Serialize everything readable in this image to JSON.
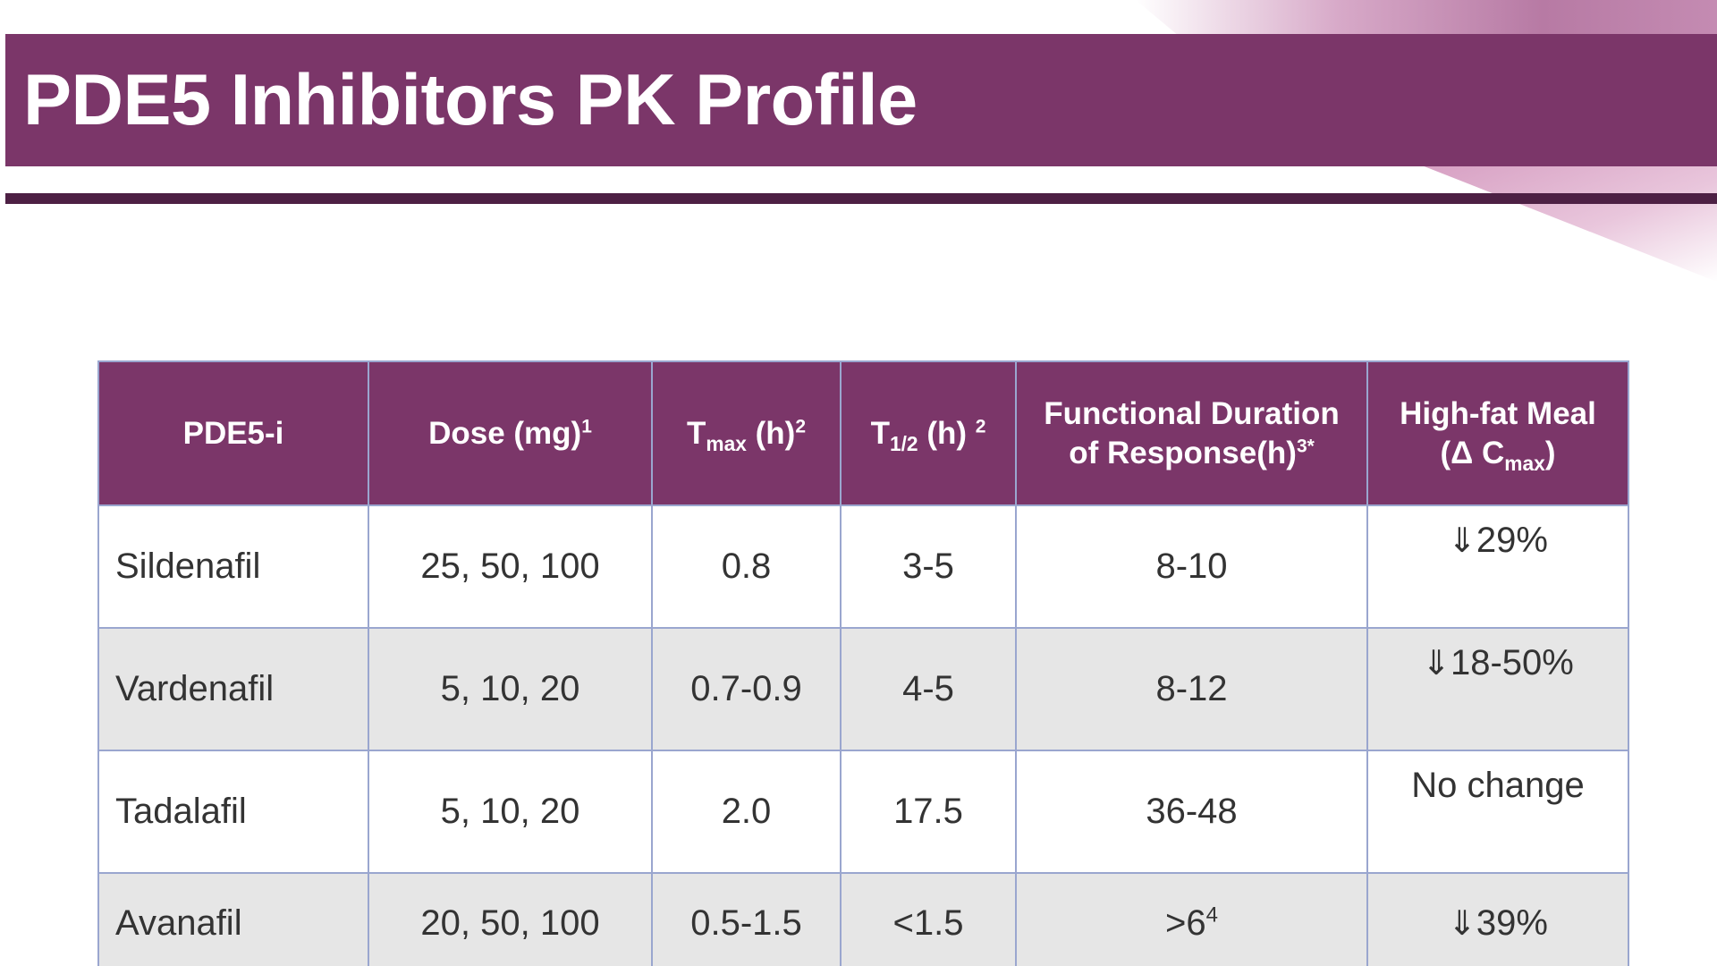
{
  "title": "PDE5 Inhibitors PK Profile",
  "colors": {
    "title_bar": "#7b3669",
    "rule": "#4d2044",
    "header_bg": "#7b3669",
    "alt_row": "#e6e6e6",
    "grid": "#9aa6cf"
  },
  "table": {
    "headers": {
      "drug": "PDE5-i",
      "dose": {
        "text": "Dose (mg)",
        "sup": "1"
      },
      "tmax": {
        "base": "T",
        "sub": "max",
        "text": " (h)",
        "sup": "2"
      },
      "thalf": {
        "base": "T",
        "sub": "1/2",
        "text": " (h) ",
        "sup": "2"
      },
      "duration": {
        "line1": "Functional Duration",
        "line2": "of Response(h)",
        "sup": "3*"
      },
      "meal": {
        "line1": "High-fat Meal",
        "line2_prefix": "(Δ C",
        "sub": "max",
        "line2_suffix": ")"
      }
    },
    "rows": [
      {
        "drug": "Sildenafil",
        "dose": "25, 50, 100",
        "tmax": "0.8",
        "thalf": "3-5",
        "duration": "8-10",
        "duration_sup": "",
        "meal_arrow": "⇓",
        "meal": "29%"
      },
      {
        "drug": "Vardenafil",
        "dose": "5, 10, 20",
        "tmax": "0.7-0.9",
        "thalf": "4-5",
        "duration": "8-12",
        "duration_sup": "",
        "meal_arrow": "⇓",
        "meal": "18-50%"
      },
      {
        "drug": "Tadalafil",
        "dose": "5, 10, 20",
        "tmax": "2.0",
        "thalf": "17.5",
        "duration": "36-48",
        "duration_sup": "",
        "meal_arrow": "",
        "meal": "No change"
      },
      {
        "drug": "Avanafil",
        "dose": "20, 50, 100",
        "tmax": "0.5-1.5",
        "thalf": "<1.5",
        "duration": ">6",
        "duration_sup": "4",
        "meal_arrow": "⇓",
        "meal": "39%"
      }
    ]
  }
}
